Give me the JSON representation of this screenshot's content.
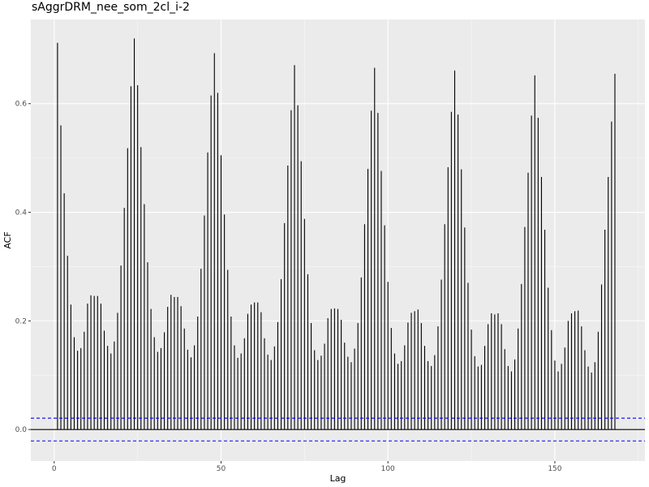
{
  "chart_data": {
    "type": "bar",
    "title": "sAggrDRM_nee_som_2cl_i-2",
    "xlabel": "Lag",
    "ylabel": "ACF",
    "xlim": [
      -7,
      177
    ],
    "ylim": [
      -0.058,
      0.755
    ],
    "x_ticks": [
      0,
      50,
      100,
      150
    ],
    "x_tick_labels": [
      "0",
      "50",
      "100",
      "150"
    ],
    "y_ticks": [
      0.0,
      0.2,
      0.4,
      0.6
    ],
    "y_tick_labels": [
      "0.0",
      "0.2",
      "0.4",
      "0.6"
    ],
    "confidence_bound": 0.021,
    "grid": true,
    "panel_background": "#ebebeb",
    "bar_color": "#000000",
    "bound_color": "#0000ff",
    "lags": [
      1,
      2,
      3,
      4,
      5,
      6,
      7,
      8,
      9,
      10,
      11,
      12,
      13,
      14,
      15,
      16,
      17,
      18,
      19,
      20,
      21,
      22,
      23,
      24,
      25,
      26,
      27,
      28,
      29,
      30,
      31,
      32,
      33,
      34,
      35,
      36,
      37,
      38,
      39,
      40,
      41,
      42,
      43,
      44,
      45,
      46,
      47,
      48,
      49,
      50,
      51,
      52,
      53,
      54,
      55,
      56,
      57,
      58,
      59,
      60,
      61,
      62,
      63,
      64,
      65,
      66,
      67,
      68,
      69,
      70,
      71,
      72,
      73,
      74,
      75,
      76,
      77,
      78,
      79,
      80,
      81,
      82,
      83,
      84,
      85,
      86,
      87,
      88,
      89,
      90,
      91,
      92,
      93,
      94,
      95,
      96,
      97,
      98,
      99,
      100,
      101,
      102,
      103,
      104,
      105,
      106,
      107,
      108,
      109,
      110,
      111,
      112,
      113,
      114,
      115,
      116,
      117,
      118,
      119,
      120,
      121,
      122,
      123,
      124,
      125,
      126,
      127,
      128,
      129,
      130,
      131,
      132,
      133,
      134,
      135,
      136,
      137,
      138,
      139,
      140,
      141,
      142,
      143,
      144,
      145,
      146,
      147,
      148,
      149,
      150,
      151,
      152,
      153,
      154,
      155,
      156,
      157,
      158,
      159,
      160,
      161,
      162,
      163,
      164,
      165,
      166,
      167,
      168
    ],
    "acf": [
      0.712,
      0.56,
      0.435,
      0.32,
      0.23,
      0.17,
      0.145,
      0.15,
      0.18,
      0.232,
      0.247,
      0.246,
      0.246,
      0.232,
      0.182,
      0.154,
      0.14,
      0.162,
      0.215,
      0.302,
      0.408,
      0.518,
      0.632,
      0.72,
      0.634,
      0.52,
      0.415,
      0.308,
      0.222,
      0.17,
      0.143,
      0.15,
      0.179,
      0.226,
      0.248,
      0.244,
      0.244,
      0.227,
      0.186,
      0.147,
      0.133,
      0.155,
      0.208,
      0.296,
      0.394,
      0.51,
      0.615,
      0.693,
      0.62,
      0.505,
      0.396,
      0.294,
      0.208,
      0.155,
      0.132,
      0.14,
      0.168,
      0.213,
      0.23,
      0.234,
      0.234,
      0.216,
      0.168,
      0.138,
      0.128,
      0.153,
      0.198,
      0.277,
      0.38,
      0.486,
      0.588,
      0.671,
      0.597,
      0.494,
      0.388,
      0.286,
      0.196,
      0.146,
      0.128,
      0.136,
      0.158,
      0.205,
      0.222,
      0.223,
      0.222,
      0.202,
      0.16,
      0.134,
      0.124,
      0.149,
      0.196,
      0.28,
      0.378,
      0.48,
      0.587,
      0.666,
      0.583,
      0.476,
      0.376,
      0.272,
      0.187,
      0.14,
      0.121,
      0.126,
      0.155,
      0.197,
      0.215,
      0.218,
      0.221,
      0.196,
      0.154,
      0.126,
      0.117,
      0.137,
      0.19,
      0.276,
      0.378,
      0.483,
      0.585,
      0.661,
      0.58,
      0.479,
      0.372,
      0.27,
      0.184,
      0.135,
      0.116,
      0.119,
      0.154,
      0.194,
      0.214,
      0.212,
      0.214,
      0.194,
      0.148,
      0.117,
      0.107,
      0.129,
      0.186,
      0.268,
      0.373,
      0.473,
      0.578,
      0.652,
      0.574,
      0.465,
      0.368,
      0.261,
      0.183,
      0.127,
      0.107,
      0.121,
      0.151,
      0.2,
      0.214,
      0.218,
      0.219,
      0.19,
      0.146,
      0.116,
      0.105,
      0.124,
      0.18,
      0.267,
      0.368,
      0.465,
      0.567,
      0.655
    ]
  }
}
